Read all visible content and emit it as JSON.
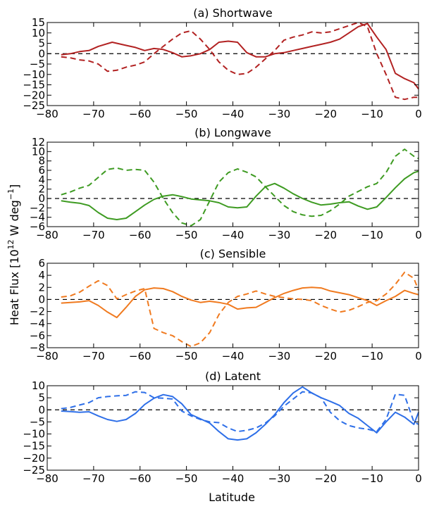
{
  "figure": {
    "xlabel": "Latitude",
    "ylabel": "Heat Flux [10",
    "ylabel_sup1": "12",
    "ylabel_mid": " W deg",
    "ylabel_sup2": "−1",
    "ylabel_end": "]"
  },
  "chart_data": [
    {
      "type": "line",
      "title": "(a) Shortwave",
      "color": "#b22222",
      "xlim": [
        -80,
        0
      ],
      "ylim": [
        -25,
        15
      ],
      "xticks": [
        -80,
        -70,
        -60,
        -50,
        -40,
        -30,
        -20,
        -10,
        0
      ],
      "yticks": [
        -25,
        -20,
        -15,
        -10,
        -5,
        0,
        5,
        10,
        15
      ],
      "zero_line": true,
      "series": [
        {
          "style": "solid",
          "x": [
            -77,
            -75,
            -73,
            -71,
            -69,
            -66,
            -63,
            -61,
            -59,
            -57,
            -55,
            -53,
            -51,
            -49,
            -47,
            -45,
            -43,
            -41,
            -39,
            -37,
            -35,
            -33,
            -31,
            -29,
            -27,
            -25,
            -23,
            -21,
            -19,
            -17,
            -15,
            -13,
            -11,
            -9,
            -7,
            -5,
            -3,
            -1,
            0
          ],
          "y": [
            -0.5,
            0,
            1,
            1.5,
            3.5,
            5.5,
            4,
            3,
            1.5,
            2.5,
            2,
            0.5,
            -1.5,
            -1,
            0,
            2,
            5.5,
            6,
            5.5,
            0.5,
            -1.5,
            -1.5,
            0,
            0.5,
            1.5,
            2.5,
            3.5,
            4.5,
            5.5,
            7,
            10,
            13,
            14.5,
            8,
            2,
            -9.5,
            -12,
            -14,
            -17
          ]
        },
        {
          "style": "dashed",
          "x": [
            -77,
            -75,
            -73,
            -71,
            -69,
            -67,
            -65,
            -63,
            -61,
            -59,
            -57,
            -55,
            -53,
            -51,
            -49,
            -47,
            -45,
            -43,
            -41,
            -39,
            -37,
            -35,
            -33,
            -31,
            -29,
            -27,
            -25,
            -23,
            -21,
            -19,
            -17,
            -15,
            -13,
            -11,
            -9,
            -7,
            -5,
            -3,
            -1,
            0
          ],
          "y": [
            -1.5,
            -2,
            -3,
            -3.5,
            -5,
            -8.5,
            -8,
            -6.5,
            -5.5,
            -4,
            0,
            3.5,
            7,
            10,
            11,
            7,
            2,
            -4,
            -8,
            -10,
            -9.5,
            -6.5,
            -2.5,
            1.5,
            6.5,
            8,
            9,
            10.5,
            10,
            10.5,
            12,
            13.5,
            15,
            13,
            0,
            -10,
            -21,
            -22,
            -21,
            -21
          ]
        }
      ]
    },
    {
      "type": "line",
      "title": "(b) Longwave",
      "color": "#3e9b22",
      "xlim": [
        -80,
        0
      ],
      "ylim": [
        -6,
        12
      ],
      "xticks": [
        -80,
        -70,
        -60,
        -50,
        -40,
        -30,
        -20,
        -10,
        0
      ],
      "yticks": [
        -6,
        -4,
        -2,
        0,
        2,
        4,
        6,
        8,
        10,
        12
      ],
      "zero_line": true,
      "series": [
        {
          "style": "solid",
          "x": [
            -77,
            -75,
            -73,
            -71,
            -69,
            -67,
            -65,
            -63,
            -61,
            -59,
            -57,
            -55,
            -53,
            -51,
            -49,
            -47,
            -45,
            -43,
            -41,
            -39,
            -37,
            -35,
            -33,
            -31,
            -29,
            -27,
            -25,
            -23,
            -21,
            -19,
            -17,
            -15,
            -13,
            -11,
            -9,
            -7,
            -5,
            -3,
            -1,
            0
          ],
          "y": [
            -0.5,
            -0.8,
            -1,
            -1.5,
            -3,
            -4.2,
            -4.5,
            -4.2,
            -2.8,
            -1.4,
            -0.2,
            0.5,
            0.8,
            0.4,
            -0.1,
            -0.3,
            -0.5,
            -0.9,
            -1.8,
            -2,
            -1.8,
            0.5,
            2.5,
            3.2,
            2.2,
            1,
            0,
            -0.8,
            -1.4,
            -1.2,
            -0.9,
            -0.7,
            -1.6,
            -2.3,
            -1.8,
            0.2,
            2.3,
            4.2,
            5.5,
            5.8
          ]
        },
        {
          "style": "dashed",
          "x": [
            -77,
            -75,
            -73,
            -71,
            -69,
            -67,
            -65,
            -63,
            -61,
            -59,
            -57,
            -55,
            -53,
            -51,
            -49,
            -47,
            -45,
            -43,
            -41,
            -39,
            -37,
            -35,
            -33,
            -31,
            -29,
            -27,
            -25,
            -23,
            -21,
            -19,
            -17,
            -15,
            -13,
            -11,
            -9,
            -7,
            -5,
            -3,
            -1,
            0
          ],
          "y": [
            0.8,
            1.4,
            2.2,
            2.8,
            4.5,
            6.2,
            6.5,
            6,
            6.2,
            6,
            3.5,
            0,
            -3,
            -5.2,
            -5.8,
            -4.5,
            -0.5,
            3.5,
            5.5,
            6.3,
            5.6,
            4.6,
            2.5,
            0.5,
            -1.5,
            -2.8,
            -3.5,
            -3.8,
            -3.6,
            -2.6,
            -1.2,
            0.5,
            1.5,
            2.5,
            3.2,
            5.5,
            9,
            10.5,
            9,
            8.5
          ]
        }
      ]
    },
    {
      "type": "line",
      "title": "(c) Sensible",
      "color": "#f07a1f",
      "xlim": [
        -80,
        0
      ],
      "ylim": [
        -8,
        6
      ],
      "xticks": [
        -80,
        -70,
        -60,
        -50,
        -40,
        -30,
        -20,
        -10,
        0
      ],
      "yticks": [
        -8,
        -6,
        -4,
        -2,
        0,
        2,
        4,
        6
      ],
      "zero_line": true,
      "series": [
        {
          "style": "solid",
          "x": [
            -77,
            -75,
            -73,
            -71,
            -69,
            -67,
            -65,
            -63,
            -61,
            -59,
            -57,
            -55,
            -53,
            -51,
            -49,
            -47,
            -45,
            -43,
            -41,
            -39,
            -37,
            -35,
            -33,
            -31,
            -29,
            -27,
            -25,
            -23,
            -21,
            -19,
            -17,
            -15,
            -13,
            -11,
            -9,
            -7,
            -5,
            -3,
            -1,
            0
          ],
          "y": [
            -0.6,
            -0.5,
            -0.4,
            -0.2,
            -1,
            -2.1,
            -3,
            -1.3,
            0.5,
            1.6,
            1.9,
            1.8,
            1.3,
            0.5,
            -0.1,
            -0.5,
            -0.3,
            -0.5,
            -0.8,
            -1.6,
            -1.4,
            -1.3,
            -0.5,
            0.3,
            1,
            1.5,
            1.9,
            2,
            1.9,
            1.4,
            1.1,
            0.8,
            0.3,
            -0.2,
            -1,
            -0.2,
            0.5,
            1.5,
            1,
            0.8
          ]
        },
        {
          "style": "dashed",
          "x": [
            -77,
            -75,
            -73,
            -71,
            -69,
            -67,
            -65,
            -63,
            -61,
            -59,
            -57,
            -55,
            -53,
            -51,
            -49,
            -47,
            -45,
            -43,
            -41,
            -39,
            -37,
            -35,
            -33,
            -31,
            -29,
            -27,
            -25,
            -23,
            -21,
            -19,
            -17,
            -15,
            -13,
            -11,
            -9,
            -7,
            -5,
            -3,
            -1,
            0
          ],
          "y": [
            0.4,
            0.6,
            1.2,
            2.2,
            3.1,
            2.3,
            0.1,
            0.8,
            1.4,
            1.8,
            -4.8,
            -5.5,
            -6,
            -7,
            -7.8,
            -7.2,
            -5.5,
            -2.5,
            -0.5,
            0.5,
            0.9,
            1.4,
            0.9,
            0.5,
            0.3,
            0.1,
            0,
            -0.2,
            -1,
            -1.6,
            -2.1,
            -1.8,
            -1.2,
            -0.5,
            -0.2,
            0.9,
            2.5,
            4.5,
            3.5,
            1.5
          ]
        }
      ]
    },
    {
      "type": "line",
      "title": "(d) Latent",
      "color": "#2e6fe8",
      "xlim": [
        -80,
        0
      ],
      "ylim": [
        -25,
        10
      ],
      "xticks": [
        -80,
        -70,
        -60,
        -50,
        -40,
        -30,
        -20,
        -10,
        0
      ],
      "yticks": [
        -25,
        -20,
        -15,
        -10,
        -5,
        0,
        5,
        10
      ],
      "zero_line": true,
      "series": [
        {
          "style": "solid",
          "x": [
            -77,
            -75,
            -73,
            -71,
            -69,
            -67,
            -65,
            -63,
            -61,
            -59,
            -57,
            -55,
            -53,
            -51,
            -49,
            -47,
            -45,
            -43,
            -41,
            -39,
            -37,
            -35,
            -33,
            -31,
            -29,
            -27,
            -25,
            -23,
            -21,
            -19,
            -17,
            -15,
            -13,
            -11,
            -9,
            -7,
            -5,
            -3,
            -1,
            0
          ],
          "y": [
            -0.5,
            -0.7,
            -1,
            -0.8,
            -2.5,
            -4,
            -4.8,
            -4,
            -1.5,
            2.2,
            4.8,
            6.3,
            5.5,
            2.5,
            -2,
            -3.7,
            -5.5,
            -9,
            -12,
            -12.5,
            -12,
            -9.5,
            -6,
            -2,
            3,
            7,
            9.5,
            7,
            5,
            3.5,
            1.8,
            -1.5,
            -3.5,
            -6.5,
            -9.5,
            -5,
            -1,
            -3,
            -6,
            -1
          ]
        },
        {
          "style": "dashed",
          "x": [
            -77,
            -75,
            -73,
            -71,
            -69,
            -67,
            -65,
            -63,
            -61,
            -59,
            -57,
            -55,
            -53,
            -51,
            -49,
            -47,
            -45,
            -43,
            -41,
            -39,
            -37,
            -35,
            -33,
            -31,
            -29,
            -27,
            -25,
            -23,
            -21,
            -19,
            -17,
            -15,
            -13,
            -11,
            -9,
            -7,
            -5,
            -3,
            -1,
            0
          ],
          "y": [
            0.5,
            1,
            2,
            3,
            5,
            5.5,
            5.8,
            6,
            7.5,
            7.2,
            5,
            4.8,
            4.5,
            -0.5,
            -2.5,
            -4,
            -5,
            -5.3,
            -7.5,
            -9,
            -8.5,
            -7.5,
            -5.5,
            -2.5,
            1.5,
            4.5,
            7.5,
            7,
            5,
            -1,
            -4.5,
            -6.5,
            -7.5,
            -8,
            -9,
            -4,
            6.5,
            6,
            -5,
            -6
          ]
        }
      ]
    }
  ]
}
